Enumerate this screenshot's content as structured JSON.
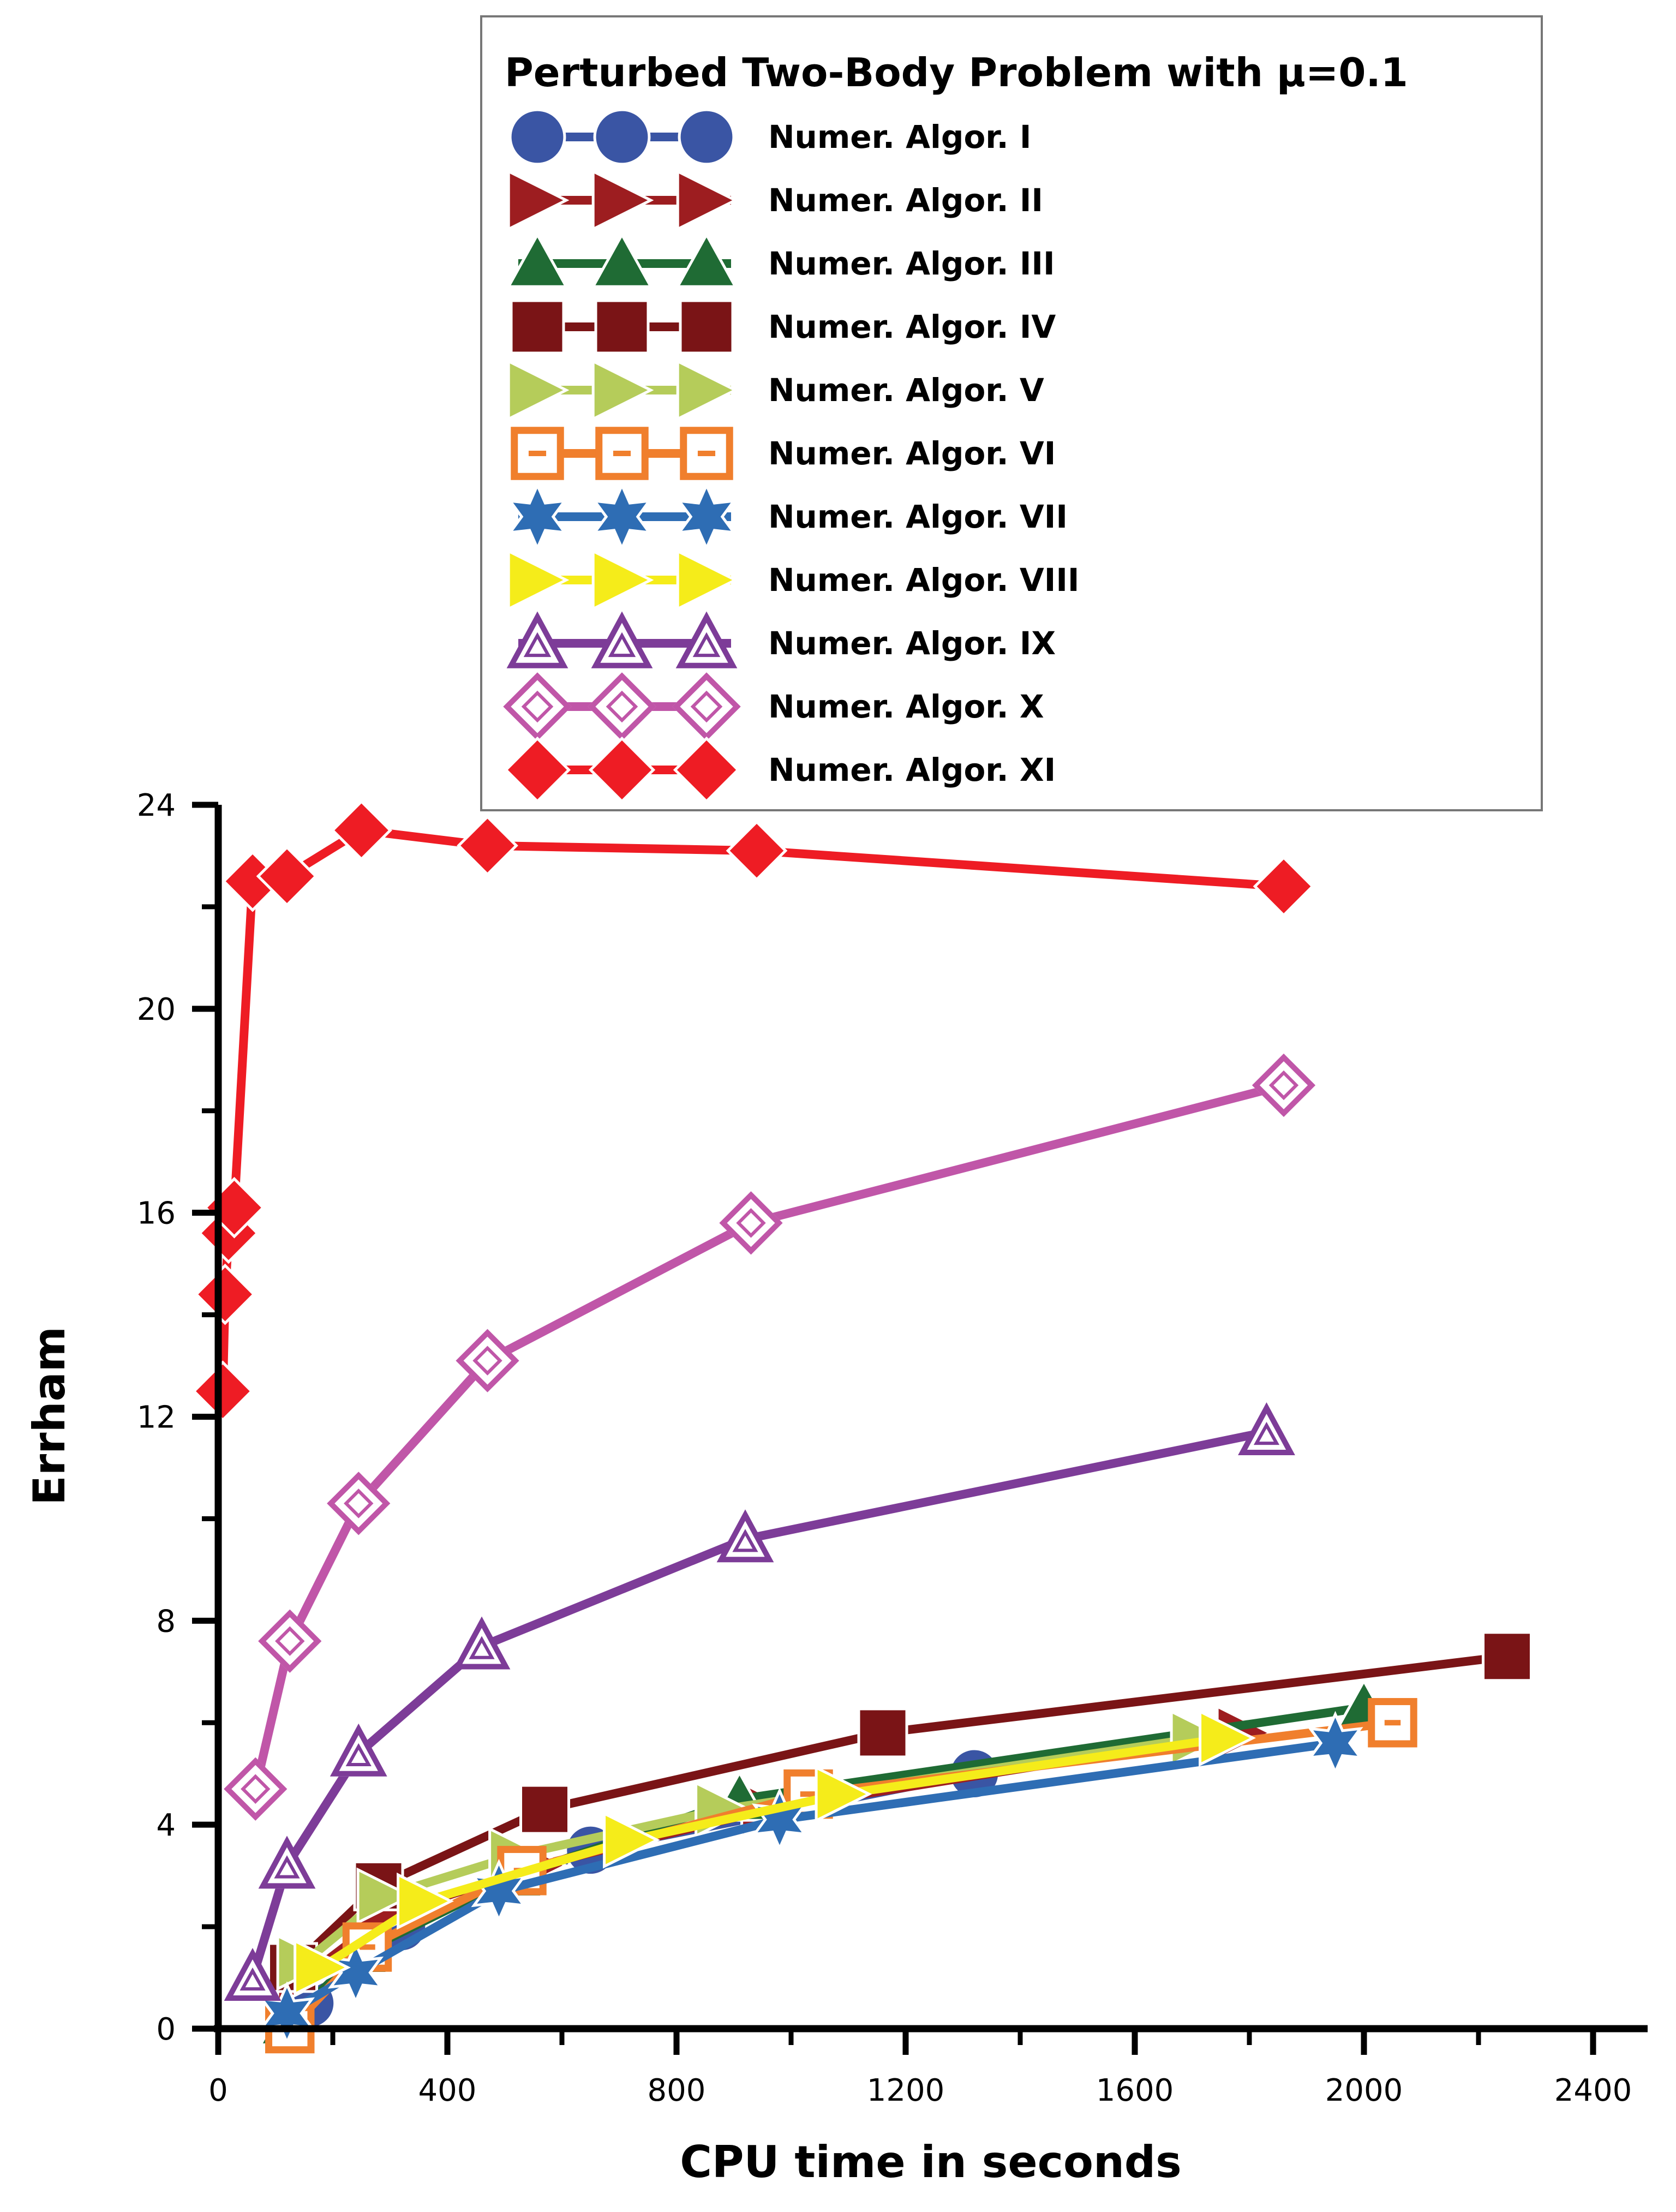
{
  "chart_data": {
    "type": "line",
    "title": "Perturbed Two-Body Problem with μ=0.1",
    "xlabel": "CPU time in seconds",
    "ylabel": "Errham",
    "xlim": [
      0,
      2400
    ],
    "ylim": [
      0,
      24
    ],
    "xticks": [
      "0",
      "400",
      "800",
      "1200",
      "1600",
      "2000",
      "2400"
    ],
    "yticks": [
      "0",
      "4",
      "8",
      "12",
      "16",
      "20",
      "24"
    ],
    "legend_position": "top-right",
    "series": [
      {
        "name": "Numer. Algor. I",
        "color": "#3a55a4",
        "marker": "circle",
        "x": [
          160,
          320,
          650,
          1320
        ],
        "y": [
          0.5,
          2.0,
          3.5,
          5.0
        ]
      },
      {
        "name": "Numer. Algor. II",
        "color": "#9d1d20",
        "marker": "triangle-right",
        "x": [
          150,
          290,
          560,
          960,
          1790
        ],
        "y": [
          1.0,
          2.2,
          3.2,
          4.3,
          5.8
        ]
      },
      {
        "name": "Numer. Algor. III",
        "color": "#1f6b34",
        "marker": "triangle-up",
        "x": [
          120,
          250,
          520,
          910,
          2000
        ],
        "y": [
          0.1,
          1.5,
          3.0,
          4.5,
          6.3
        ]
      },
      {
        "name": "Numer. Algor. IV",
        "color": "#7a1416",
        "marker": "square",
        "x": [
          130,
          280,
          570,
          1160,
          2250
        ],
        "y": [
          1.2,
          2.8,
          4.3,
          5.8,
          7.3
        ]
      },
      {
        "name": "Numer. Algor. V",
        "color": "#b5cc5a",
        "marker": "triangle-right",
        "x": [
          150,
          290,
          520,
          880,
          1710
        ],
        "y": [
          1.3,
          2.6,
          3.4,
          4.3,
          5.7
        ]
      },
      {
        "name": "Numer. Algor. VI",
        "color": "#f07f2d",
        "marker": "square-open",
        "x": [
          125,
          260,
          530,
          1030,
          2050
        ],
        "y": [
          0.0,
          1.6,
          3.1,
          4.6,
          6.0
        ]
      },
      {
        "name": "Numer. Algor. VII",
        "color": "#2e6db4",
        "marker": "star",
        "x": [
          120,
          240,
          490,
          980,
          1950
        ],
        "y": [
          0.3,
          1.1,
          2.7,
          4.1,
          5.6
        ]
      },
      {
        "name": "Numer. Algor. VIII",
        "color": "#f5ec1a",
        "marker": "triangle-right",
        "x": [
          180,
          360,
          720,
          1090,
          1760
        ],
        "y": [
          1.2,
          2.5,
          3.7,
          4.6,
          5.7
        ]
      },
      {
        "name": "Numer. Algor. IX",
        "color": "#7d3c98",
        "marker": "triangle-open",
        "x": [
          60,
          120,
          245,
          460,
          920,
          1830
        ],
        "y": [
          1.0,
          3.2,
          5.4,
          7.5,
          9.6,
          11.7
        ]
      },
      {
        "name": "Numer. Algor. X",
        "color": "#c056a8",
        "marker": "diamond-open",
        "x": [
          65,
          125,
          245,
          470,
          930,
          1860
        ],
        "y": [
          4.7,
          7.6,
          10.3,
          13.1,
          15.8,
          18.5
        ]
      },
      {
        "name": "Numer. Algor. XI",
        "color": "#ee1c24",
        "marker": "diamond",
        "x": [
          8,
          12,
          18,
          28,
          60,
          120,
          250,
          470,
          940,
          1860
        ],
        "y": [
          12.5,
          14.4,
          15.6,
          16.1,
          22.5,
          22.6,
          23.5,
          23.2,
          23.1,
          22.4
        ]
      }
    ]
  }
}
